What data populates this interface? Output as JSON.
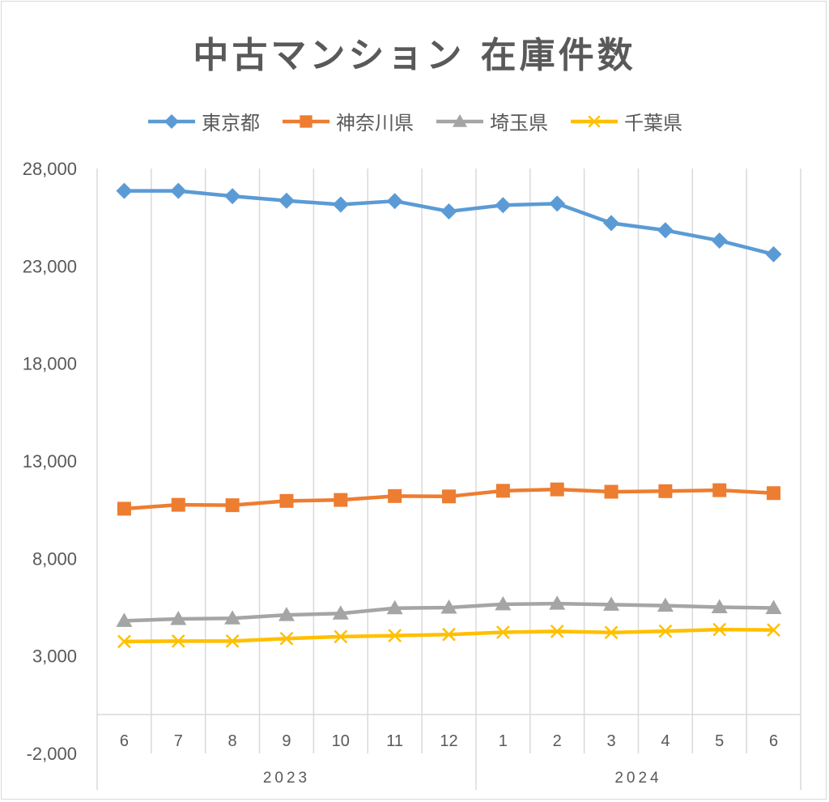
{
  "chart_data": {
    "type": "line",
    "title": "中古マンション 在庫件数",
    "xlabel": "",
    "ylabel": "",
    "ylim": [
      -2000,
      28000
    ],
    "yticks": [
      -2000,
      3000,
      8000,
      13000,
      18000,
      23000,
      28000
    ],
    "ytick_labels": [
      "-2,000",
      "3,000",
      "8,000",
      "13,000",
      "18,000",
      "23,000",
      "28,000"
    ],
    "categories": [
      "6",
      "7",
      "8",
      "9",
      "10",
      "11",
      "12",
      "1",
      "2",
      "3",
      "4",
      "5",
      "6"
    ],
    "year_groups": [
      {
        "label": "2023",
        "start": 0,
        "end": 6
      },
      {
        "label": "2024",
        "start": 7,
        "end": 12
      }
    ],
    "grid": "vertical",
    "legend_position": "top",
    "series": [
      {
        "name": "東京都",
        "color": "#5b9bd5",
        "marker": "diamond",
        "values": [
          26850,
          26850,
          26580,
          26350,
          26150,
          26330,
          25800,
          26120,
          26200,
          25200,
          24830,
          24300,
          23600
        ]
      },
      {
        "name": "神奈川県",
        "color": "#ed7d31",
        "marker": "square",
        "values": [
          10550,
          10750,
          10730,
          10950,
          11000,
          11200,
          11180,
          11470,
          11540,
          11420,
          11450,
          11500,
          11350
        ]
      },
      {
        "name": "埼玉県",
        "color": "#a5a5a5",
        "marker": "triangle",
        "values": [
          4800,
          4900,
          4930,
          5100,
          5180,
          5450,
          5480,
          5650,
          5680,
          5630,
          5580,
          5500,
          5460
        ]
      },
      {
        "name": "千葉県",
        "color": "#ffc000",
        "marker": "x",
        "values": [
          3740,
          3760,
          3760,
          3890,
          3990,
          4040,
          4100,
          4210,
          4260,
          4200,
          4270,
          4350,
          4330
        ]
      }
    ]
  }
}
